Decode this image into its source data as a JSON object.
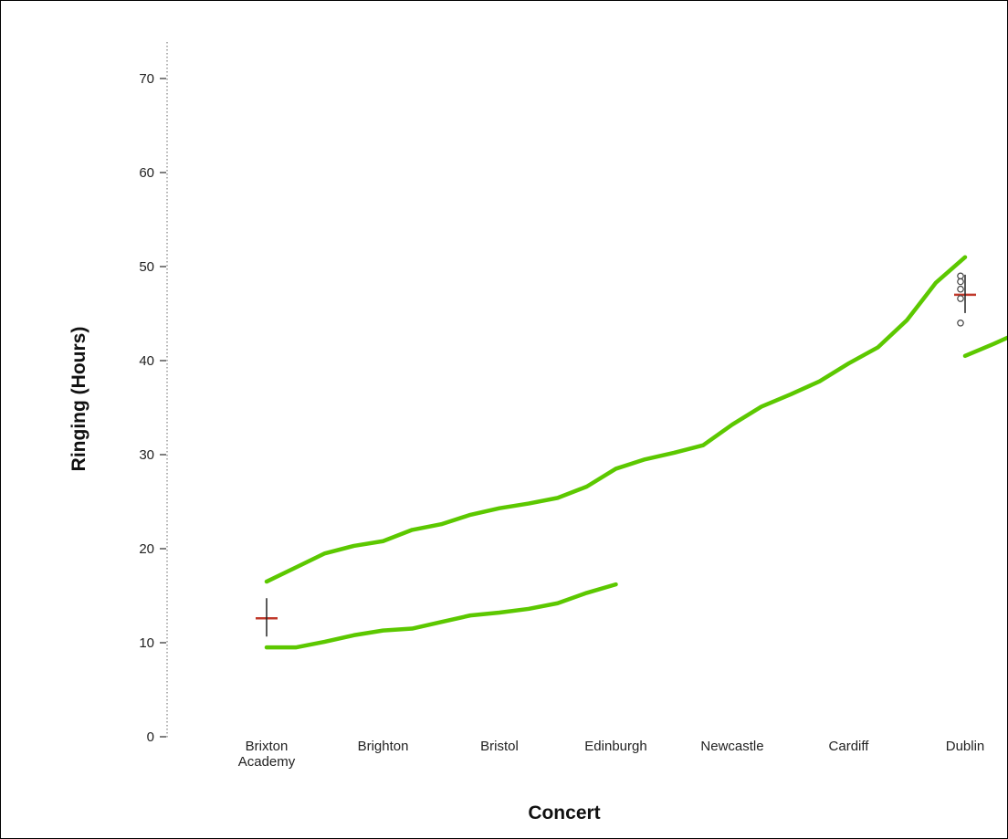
{
  "chart_data": {
    "type": "line",
    "xlabel": "Concert",
    "ylabel": "Ringing (Hours)",
    "ylim": [
      0,
      73
    ],
    "yticks": [
      "0",
      "10",
      "20",
      "30",
      "40",
      "50",
      "60",
      "70"
    ],
    "categories": [
      [
        "Brixton",
        "Academy"
      ],
      [
        "Brighton"
      ],
      [
        "Bristol"
      ],
      [
        "Edinburgh"
      ],
      [
        "Newcastle"
      ],
      [
        "Cardiff"
      ],
      [
        "Dublin"
      ]
    ],
    "series": [
      {
        "color": "#5cc800",
        "x": [
          0,
          0.25,
          0.5,
          0.75,
          1.0,
          1.25,
          1.5,
          1.75,
          2.0,
          2.25,
          2.5,
          2.75,
          3.0,
          3.25,
          3.5,
          3.75,
          4.0,
          4.25,
          4.5,
          4.75,
          5.0,
          5.25,
          5.5,
          5.75,
          6.0
        ],
        "values": [
          16.5,
          18,
          19.5,
          20.3,
          20.8,
          22,
          22.6,
          23.6,
          24.3,
          24.8,
          25.4,
          26.6,
          28.5,
          29.5,
          30.2,
          31,
          33.2,
          35.1,
          36.4,
          37.8,
          39.7,
          41.4,
          44.3,
          48.3,
          51
        ]
      },
      {
        "color": "#5cc800",
        "x": [
          0,
          0.25,
          0.5,
          0.75,
          1.0,
          1.25,
          1.5,
          1.75,
          2.0,
          2.25,
          2.5,
          2.75,
          3.0
        ],
        "values": [
          9.5,
          9.5,
          10.1,
          10.8,
          11.3,
          11.5,
          12.2,
          12.9,
          13.2,
          13.6,
          14.2,
          15.3,
          16.2
        ]
      },
      {
        "color": "#5cc800",
        "x": [
          6.0,
          6.25,
          6.5
        ],
        "values": [
          40.5,
          41.8,
          43.2
        ]
      }
    ],
    "medians": [
      {
        "category": "Brixton Academy",
        "value": 12.6,
        "color": "#c0392b"
      },
      {
        "category": "Dublin",
        "value": 47.0,
        "color": "#c0392b"
      }
    ],
    "outliers": [
      {
        "category": "Dublin",
        "values": [
          49.0,
          48.4,
          47.6,
          46.6,
          44.0
        ]
      }
    ],
    "grid": false
  }
}
